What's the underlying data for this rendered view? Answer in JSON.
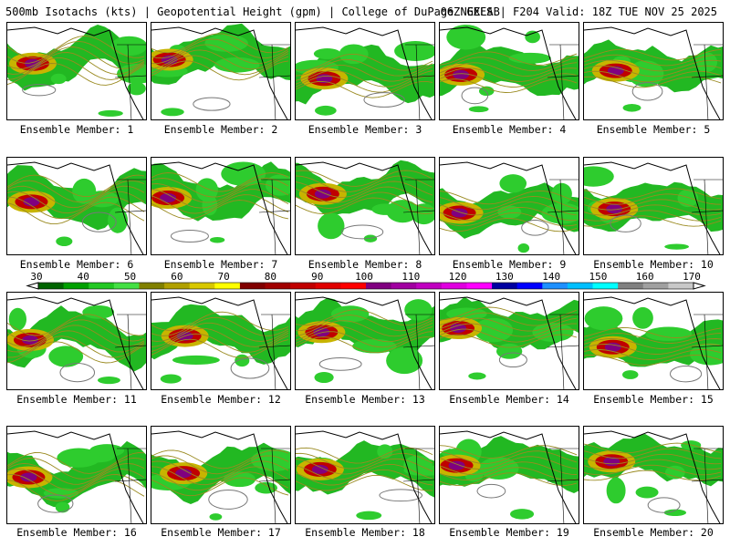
{
  "header": {
    "left": "500mb Isotachs (kts) | Geopotential Height (gpm) | College of DuPage NEXLAB",
    "right": "06Z GEFS | F204 Valid: 18Z TUE NOV 25 2025"
  },
  "panels": [
    {
      "label": "Ensemble Member: 1"
    },
    {
      "label": "Ensemble Member: 2"
    },
    {
      "label": "Ensemble Member: 3"
    },
    {
      "label": "Ensemble Member: 4"
    },
    {
      "label": "Ensemble Member: 5"
    },
    {
      "label": "Ensemble Member: 6"
    },
    {
      "label": "Ensemble Member: 7"
    },
    {
      "label": "Ensemble Member: 8"
    },
    {
      "label": "Ensemble Member: 9"
    },
    {
      "label": "Ensemble Member: 10"
    },
    {
      "label": "Ensemble Member: 11"
    },
    {
      "label": "Ensemble Member: 12"
    },
    {
      "label": "Ensemble Member: 13"
    },
    {
      "label": "Ensemble Member: 14"
    },
    {
      "label": "Ensemble Member: 15"
    },
    {
      "label": "Ensemble Member: 16"
    },
    {
      "label": "Ensemble Member: 17"
    },
    {
      "label": "Ensemble Member: 18"
    },
    {
      "label": "Ensemble Member: 19"
    },
    {
      "label": "Ensemble Member: 20"
    }
  ],
  "colorbar": {
    "tick_labels": [
      "30",
      "40",
      "50",
      "60",
      "70",
      "80",
      "90",
      "100",
      "110",
      "120",
      "130",
      "140",
      "150",
      "160",
      "170"
    ],
    "colors": [
      "#006400",
      "#00a000",
      "#22c822",
      "#44e044",
      "#808000",
      "#b0a000",
      "#d8c800",
      "#ffff00",
      "#800000",
      "#a00000",
      "#c00000",
      "#e00000",
      "#ff0000",
      "#800080",
      "#a000a0",
      "#c000c0",
      "#e000e0",
      "#ff00ff",
      "#0000a0",
      "#0000ff",
      "#1e90ff",
      "#00bfff",
      "#00ffff",
      "#808080",
      "#a0a0a0",
      "#c8c8c8"
    ]
  }
}
